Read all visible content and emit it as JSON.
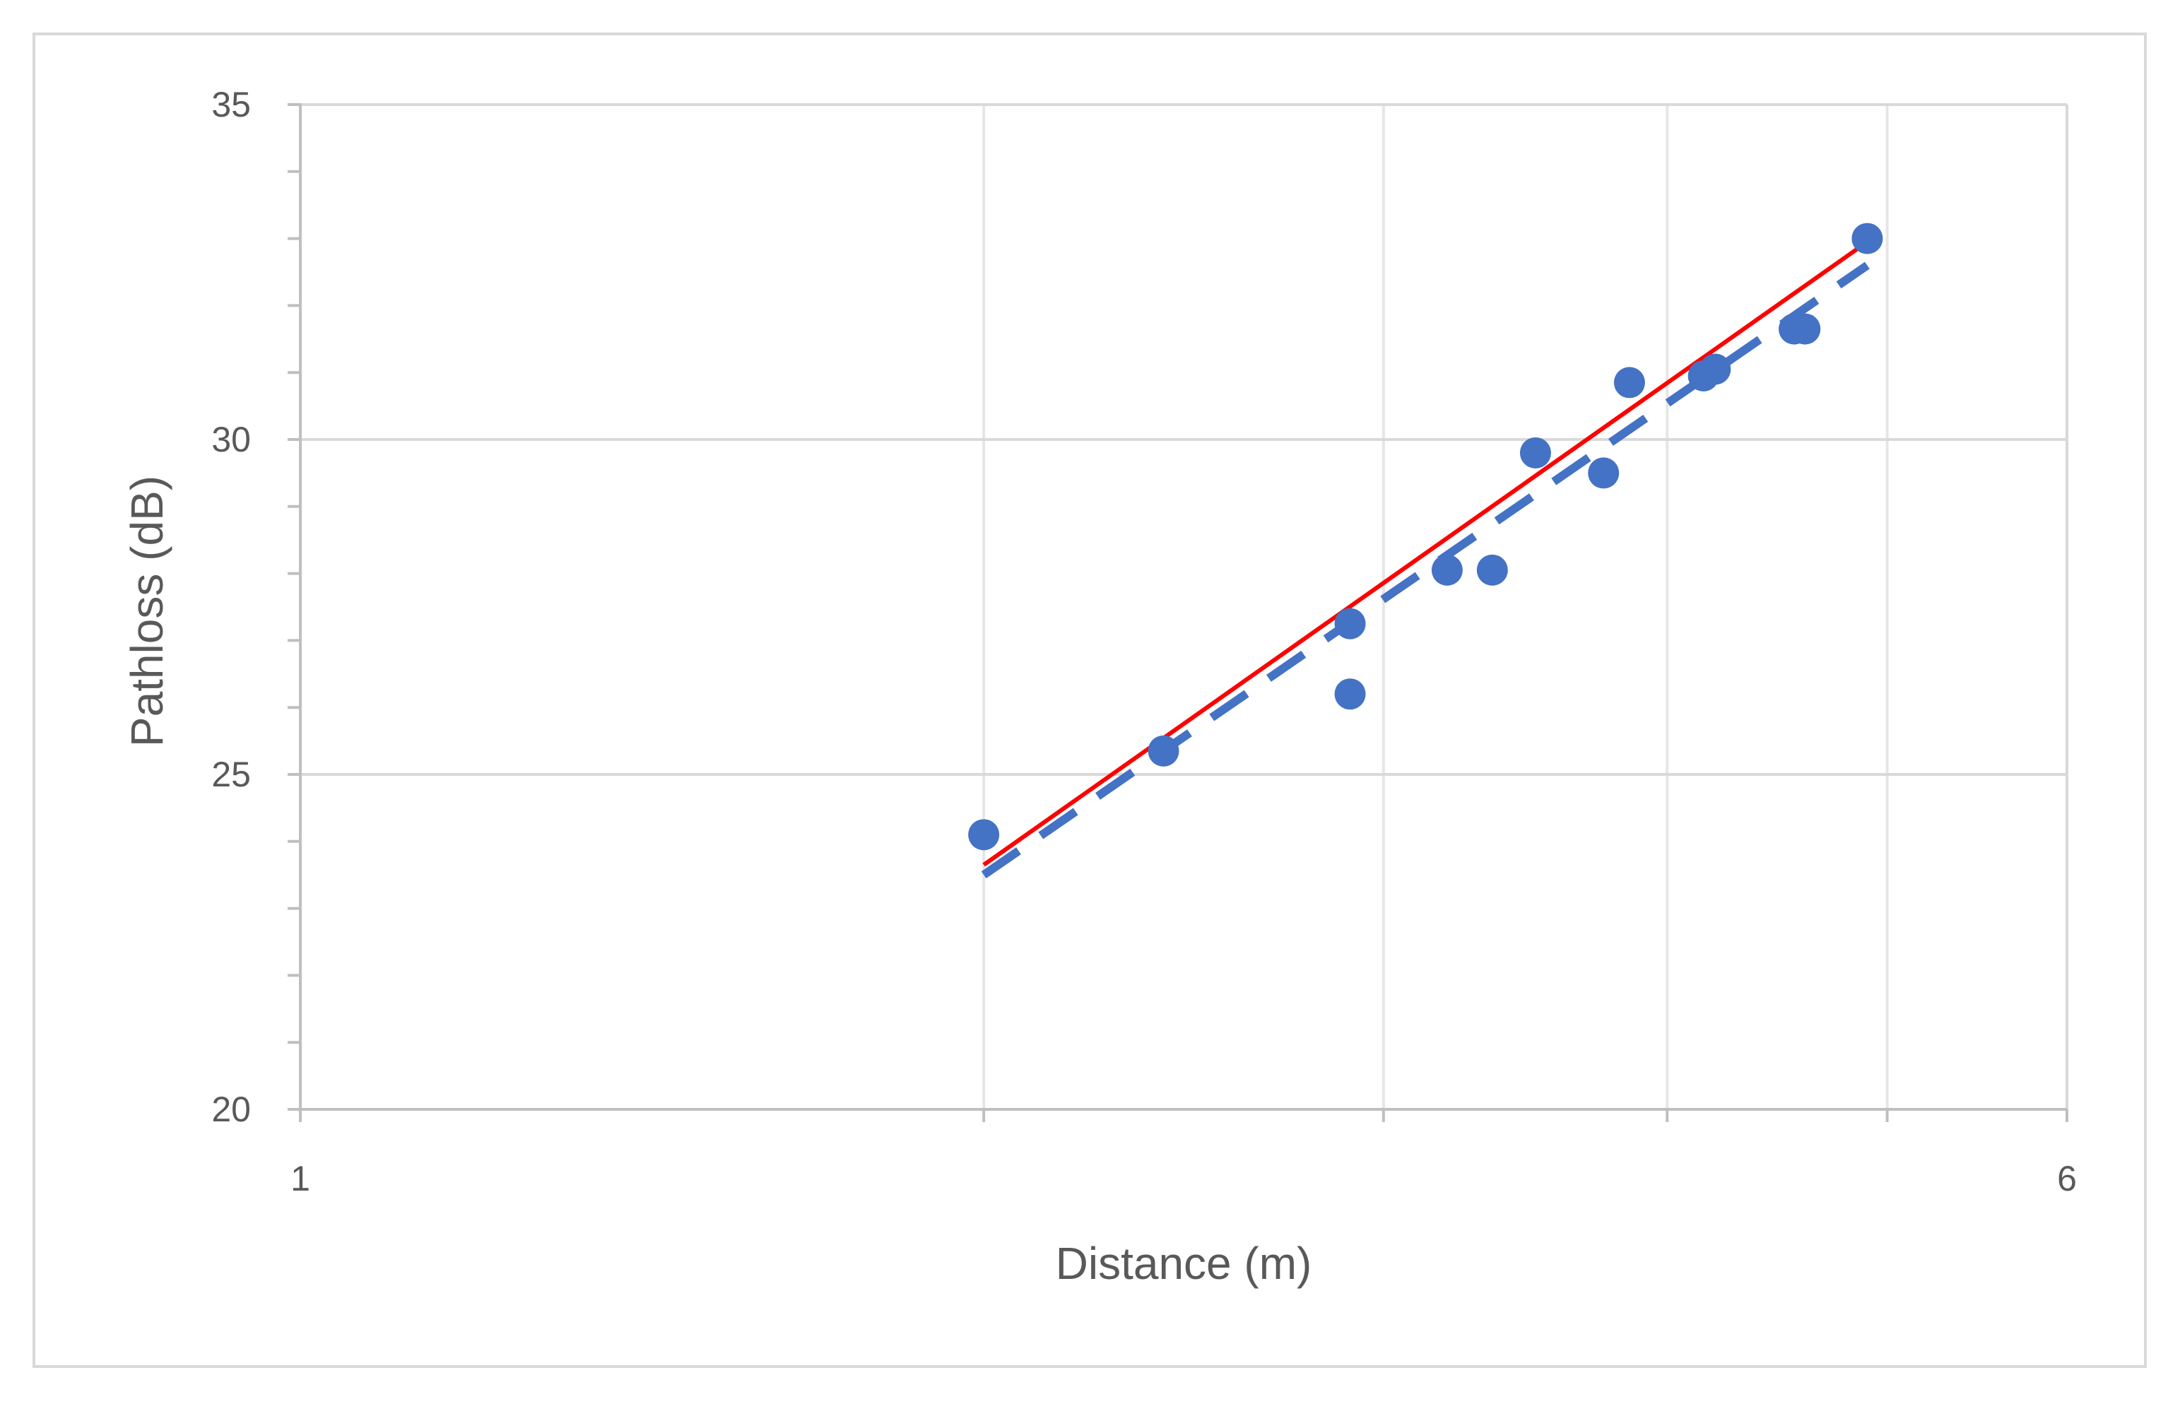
{
  "chart_data": {
    "type": "scatter",
    "xlabel": "Distance (m)",
    "ylabel": "Pathloss  (dB)",
    "xscale": "log",
    "xlim": [
      1,
      6
    ],
    "ylim": [
      20,
      35
    ],
    "x_tick_labels": [
      "1",
      "6"
    ],
    "y_tick_labels": [
      "20",
      "25",
      "30",
      "35"
    ],
    "grid": true,
    "legend": "none",
    "series": [
      {
        "kind": "points",
        "color": "#4472c4",
        "points": [
          {
            "x": 2.0,
            "y": 24.1
          },
          {
            "x": 2.4,
            "y": 25.35
          },
          {
            "x": 2.9,
            "y": 26.2
          },
          {
            "x": 2.9,
            "y": 27.25
          },
          {
            "x": 3.2,
            "y": 28.05
          },
          {
            "x": 3.35,
            "y": 28.05
          },
          {
            "x": 3.5,
            "y": 29.8
          },
          {
            "x": 3.75,
            "y": 29.5
          },
          {
            "x": 3.85,
            "y": 30.85
          },
          {
            "x": 4.15,
            "y": 30.95
          },
          {
            "x": 4.2,
            "y": 31.05
          },
          {
            "x": 4.55,
            "y": 31.65
          },
          {
            "x": 4.6,
            "y": 31.65
          },
          {
            "x": 4.9,
            "y": 33.0
          }
        ]
      },
      {
        "kind": "line",
        "color": "#ff0000",
        "style": "solid",
        "points": [
          {
            "x": 2.0,
            "y": 23.65
          },
          {
            "x": 4.9,
            "y": 32.95
          }
        ]
      },
      {
        "kind": "line",
        "color": "#4472c4",
        "style": "dashed",
        "points": [
          {
            "x": 2.0,
            "y": 23.5
          },
          {
            "x": 4.9,
            "y": 32.6
          }
        ]
      }
    ]
  }
}
